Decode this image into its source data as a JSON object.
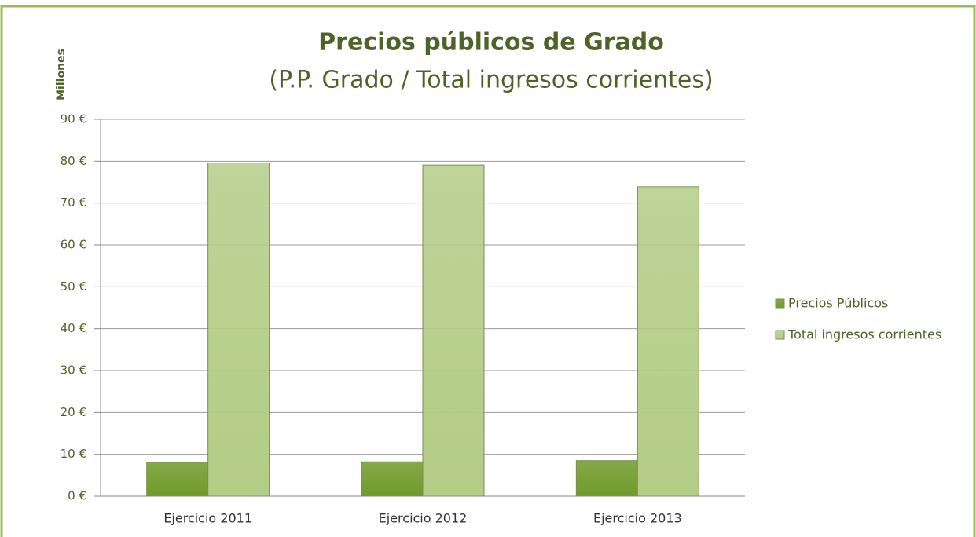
{
  "chart_data": {
    "type": "bar",
    "title": "Precios públicos de Grado",
    "subtitle": "(P.P. Grado / Total ingresos corrientes)",
    "y_label": "Millones",
    "categories": [
      "Ejercicio 2011",
      "Ejercicio 2012",
      "Ejercicio 2013"
    ],
    "series": [
      {
        "name": "Precios Públicos",
        "color": "#6f9a2a",
        "values": [
          8.1,
          8.2,
          8.5
        ]
      },
      {
        "name": "Total ingresos corrientes",
        "color": "#b3cc86",
        "values": [
          79.6,
          79.1,
          73.9
        ]
      }
    ],
    "ylim": [
      0,
      90
    ],
    "yticks": [
      {
        "value": 0,
        "label": "0 €"
      },
      {
        "value": 10,
        "label": "10 €"
      },
      {
        "value": 20,
        "label": "20 €"
      },
      {
        "value": 30,
        "label": "30 €"
      },
      {
        "value": 40,
        "label": "40 €"
      },
      {
        "value": 50,
        "label": "50 €"
      },
      {
        "value": 60,
        "label": "60 €"
      },
      {
        "value": 70,
        "label": "70 €"
      },
      {
        "value": 80,
        "label": "80 €"
      },
      {
        "value": 90,
        "label": "90 €"
      }
    ],
    "grid": true,
    "legend": "right"
  }
}
